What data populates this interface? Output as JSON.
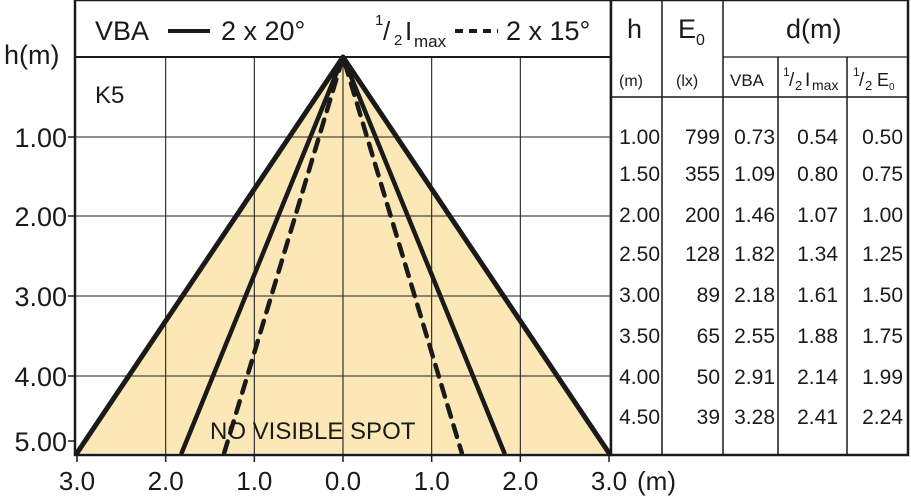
{
  "legend": {
    "vba_label": "VBA",
    "vba_value": "2 x 20°",
    "imax_sup": "1",
    "imax_sub": "2",
    "imax_main": "I",
    "imax_subscript": "max",
    "imax_value": "2 x 15°"
  },
  "diagram": {
    "y_axis_title": "h(m)",
    "x_axis_unit": "(m)",
    "lamp_code": "K5",
    "no_spot_label": "NO VISIBLE SPOT",
    "y_ticks": [
      "1.00",
      "2.00",
      "3.00",
      "4.00",
      "5.00"
    ],
    "x_ticks": [
      "3.0",
      "2.0",
      "1.0",
      "0.0",
      "1.0",
      "2.0",
      "3.0"
    ],
    "colors": {
      "fill": "#fbe8b6",
      "line": "#1a1a1a",
      "grid": "#222222"
    },
    "profiles": [
      {
        "name": "outer",
        "style": "solid",
        "halfwidth_at_5m": 3.0
      },
      {
        "name": "VBA",
        "style": "solid",
        "halfwidth_at_5m": 1.82
      },
      {
        "name": "half-Imax",
        "style": "dashed",
        "halfwidth_at_5m": 1.34
      }
    ]
  },
  "table": {
    "header_h": "h",
    "header_e0_main": "E",
    "header_e0_sub": "0",
    "header_d": "d(m)",
    "unit_h": "(m)",
    "unit_e0": "(lx)",
    "col_vba": "VBA",
    "col_imax_sup": "1",
    "col_imax_sub": "2",
    "col_imax_main": "I",
    "col_imax_subscript": "max",
    "col_e0_sup": "1",
    "col_e0_sub": "2",
    "col_e0_main": "E",
    "col_e0_subscript": "0",
    "rows": [
      [
        "1.00",
        "799",
        "0.73",
        "0.54",
        "0.50"
      ],
      [
        "1.50",
        "355",
        "1.09",
        "0.80",
        "0.75"
      ],
      [
        "2.00",
        "200",
        "1.46",
        "1.07",
        "1.00"
      ],
      [
        "2.50",
        "128",
        "1.82",
        "1.34",
        "1.25"
      ],
      [
        "3.00",
        "89",
        "2.18",
        "1.61",
        "1.50"
      ],
      [
        "3.50",
        "65",
        "2.55",
        "1.88",
        "1.75"
      ],
      [
        "4.00",
        "50",
        "2.91",
        "2.14",
        "1.99"
      ],
      [
        "4.50",
        "39",
        "3.28",
        "2.41",
        "2.24"
      ]
    ]
  }
}
